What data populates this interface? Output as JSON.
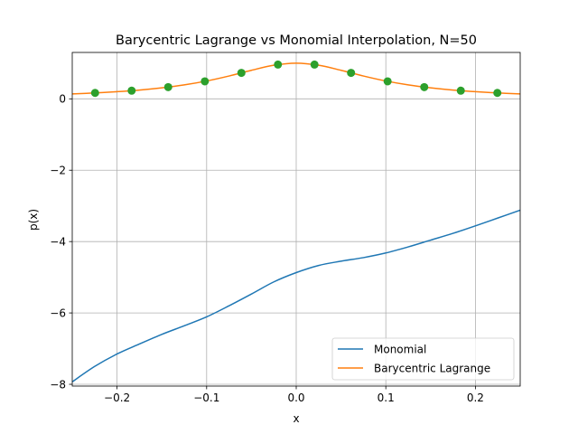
{
  "chart_data": {
    "type": "line",
    "title": "Barycentric Lagrange vs Monomial Interpolation, N=50",
    "xlabel": "x",
    "ylabel": "p(x)",
    "xlim": [
      -0.25,
      0.25
    ],
    "ylim": [
      -8.05,
      1.3
    ],
    "grid": true,
    "legend_position": "lower-right",
    "x_ticks": [
      -0.2,
      -0.1,
      0.0,
      0.1,
      0.2
    ],
    "x_tick_labels": [
      "−0.2",
      "−0.1",
      "0.0",
      "0.1",
      "0.2"
    ],
    "y_ticks": [
      -8,
      -6,
      -4,
      -2,
      0
    ],
    "y_tick_labels": [
      "−8",
      "−6",
      "−4",
      "−2",
      "0"
    ],
    "series": [
      {
        "name": "Monomial",
        "color": "#1f77b4",
        "x": [
          -0.25,
          -0.225,
          -0.2,
          -0.175,
          -0.15,
          -0.125,
          -0.1,
          -0.075,
          -0.05,
          -0.025,
          0.0,
          0.025,
          0.05,
          0.075,
          0.1,
          0.125,
          0.15,
          0.175,
          0.2,
          0.225,
          0.25
        ],
        "y": [
          -7.93,
          -7.5,
          -7.15,
          -6.87,
          -6.6,
          -6.36,
          -6.11,
          -5.8,
          -5.47,
          -5.13,
          -4.87,
          -4.67,
          -4.55,
          -4.45,
          -4.32,
          -4.15,
          -3.96,
          -3.77,
          -3.56,
          -3.34,
          -3.12
        ]
      },
      {
        "name": "Barycentric Lagrange",
        "color": "#ff7f0e",
        "x": [
          -0.25,
          -0.225,
          -0.2,
          -0.175,
          -0.15,
          -0.125,
          -0.1,
          -0.075,
          -0.05,
          -0.025,
          0.0,
          0.025,
          0.05,
          0.075,
          0.1,
          0.125,
          0.15,
          0.175,
          0.2,
          0.225,
          0.25
        ],
        "y": [
          0.138,
          0.165,
          0.2,
          0.246,
          0.308,
          0.39,
          0.5,
          0.64,
          0.8,
          0.941,
          1.0,
          0.941,
          0.8,
          0.64,
          0.5,
          0.39,
          0.308,
          0.246,
          0.2,
          0.165,
          0.138
        ]
      }
    ],
    "markers": {
      "color": "#2ca02c",
      "x": [
        -0.2245,
        -0.1837,
        -0.1429,
        -0.102,
        -0.0612,
        -0.0204,
        0.0204,
        0.0612,
        0.102,
        0.1429,
        0.1837,
        0.2245
      ],
      "y": [
        0.166,
        0.229,
        0.329,
        0.49,
        0.728,
        0.96,
        0.96,
        0.728,
        0.49,
        0.329,
        0.229,
        0.166
      ]
    }
  }
}
